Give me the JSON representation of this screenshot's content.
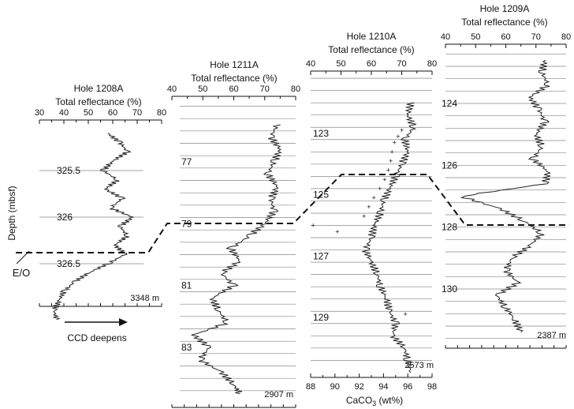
{
  "figure": {
    "depth_label": "Depth (mbsf)",
    "eo_label": "E/O",
    "ccd_label": "CCD deepens",
    "caco3_label": "CaCO",
    "caco3_sub": "3",
    "caco3_unit": " (wt%)"
  },
  "chart_data": [
    {
      "type": "line",
      "hole": "Hole 1208A",
      "title": "Total reflectance (%)",
      "water_depth": "3348 m",
      "xlim": [
        30,
        80
      ],
      "x_ticks": [
        "30",
        "40",
        "50",
        "60",
        "70",
        "80"
      ],
      "depth_ticks": [
        "325.5",
        "326",
        "326.5"
      ],
      "eo_boundary_depth": 326.4,
      "series": [
        {
          "depth": [
            325.1,
            325.2,
            325.3,
            325.4,
            325.5,
            325.6,
            325.7,
            325.8,
            325.9,
            326.0,
            326.1,
            326.2,
            326.3,
            326.4,
            326.5,
            326.6,
            326.7,
            326.8,
            326.9,
            327.0,
            327.1
          ],
          "values": [
            58,
            63,
            66,
            60,
            56,
            62,
            57,
            64,
            59,
            68,
            63,
            66,
            61,
            65,
            58,
            50,
            44,
            40,
            38,
            36,
            37
          ]
        }
      ]
    },
    {
      "type": "line",
      "hole": "Hole 1211A",
      "title": "Total reflectance (%)",
      "water_depth": "2907 m",
      "xlim": [
        40,
        80
      ],
      "x_ticks": [
        "40",
        "50",
        "60",
        "70",
        "80"
      ],
      "depth_ticks": [
        "77",
        "79",
        "81",
        "83"
      ],
      "eo_boundary_depth": 79.0,
      "series": [
        {
          "depth": [
            75.8,
            76.2,
            76.6,
            77.0,
            77.4,
            77.8,
            78.2,
            78.6,
            79.0,
            79.4,
            79.8,
            80.2,
            80.6,
            81.0,
            81.4,
            81.8,
            82.2,
            82.6,
            83.0,
            83.4,
            83.8,
            84.2,
            84.5
          ],
          "values": [
            74,
            72,
            75,
            73,
            71,
            74,
            72,
            73,
            70,
            65,
            59,
            62,
            56,
            60,
            53,
            55,
            58,
            47,
            52,
            49,
            56,
            60,
            62
          ]
        }
      ]
    },
    {
      "type": "line",
      "hole": "Hole 1210A",
      "title": "Total reflectance (%)",
      "water_depth": "2573 m",
      "xlim": [
        40,
        80
      ],
      "x_ticks": [
        "40",
        "50",
        "60",
        "70",
        "80"
      ],
      "depth_ticks": [
        "123",
        "125",
        "127",
        "129"
      ],
      "eo_boundary_depth": 124.8,
      "secondary_axis": {
        "label": "CaCO3 (wt%)",
        "xlim": [
          88,
          98
        ],
        "x_ticks": [
          "88",
          "90",
          "92",
          "94",
          "96",
          "98"
        ]
      },
      "series": [
        {
          "depth": [
            122.0,
            122.4,
            122.8,
            123.2,
            123.6,
            124.0,
            124.4,
            124.8,
            125.2,
            125.6,
            126.0,
            126.4,
            126.8,
            127.2,
            127.6,
            128.0,
            128.4,
            128.8,
            129.2,
            129.6,
            130.0,
            130.4,
            130.8
          ],
          "values": [
            73,
            72,
            74,
            71,
            72,
            70,
            68,
            66,
            64,
            63,
            61,
            60,
            58,
            60,
            62,
            63,
            65,
            66,
            68,
            67,
            71,
            72,
            73
          ]
        },
        {
          "name": "CaCO3",
          "marker": "+",
          "depth": [
            122.9,
            123.1,
            123.3,
            123.6,
            123.9,
            124.2,
            124.5,
            124.8,
            125.1,
            125.4,
            125.7,
            126.0,
            126.2,
            128.9
          ],
          "values": [
            95.5,
            95.2,
            94.9,
            94.7,
            94.6,
            94.4,
            94.1,
            93.7,
            93.2,
            92.8,
            92.4,
            88.2,
            90.2,
            95.8
          ]
        }
      ]
    },
    {
      "type": "line",
      "hole": "Hole 1209A",
      "title": "Total reflectance (%)",
      "water_depth": "2387 m",
      "xlim": [
        40,
        80
      ],
      "x_ticks": [
        "40",
        "50",
        "60",
        "70",
        "80"
      ],
      "depth_ticks": [
        "124",
        "126",
        "128",
        "130"
      ],
      "eo_boundary_depth": 128.0,
      "series": [
        {
          "depth": [
            122.6,
            123.0,
            123.4,
            123.8,
            124.2,
            124.6,
            125.0,
            125.4,
            125.8,
            126.2,
            126.6,
            127.0,
            127.4,
            127.8,
            128.2,
            128.6,
            129.0,
            129.4,
            129.8,
            130.2,
            130.6,
            131.0,
            131.4
          ],
          "values": [
            73,
            72,
            74,
            68,
            71,
            73,
            70,
            72,
            69,
            74,
            73,
            45,
            58,
            66,
            72,
            68,
            62,
            60,
            64,
            57,
            60,
            63,
            65
          ]
        }
      ]
    }
  ]
}
